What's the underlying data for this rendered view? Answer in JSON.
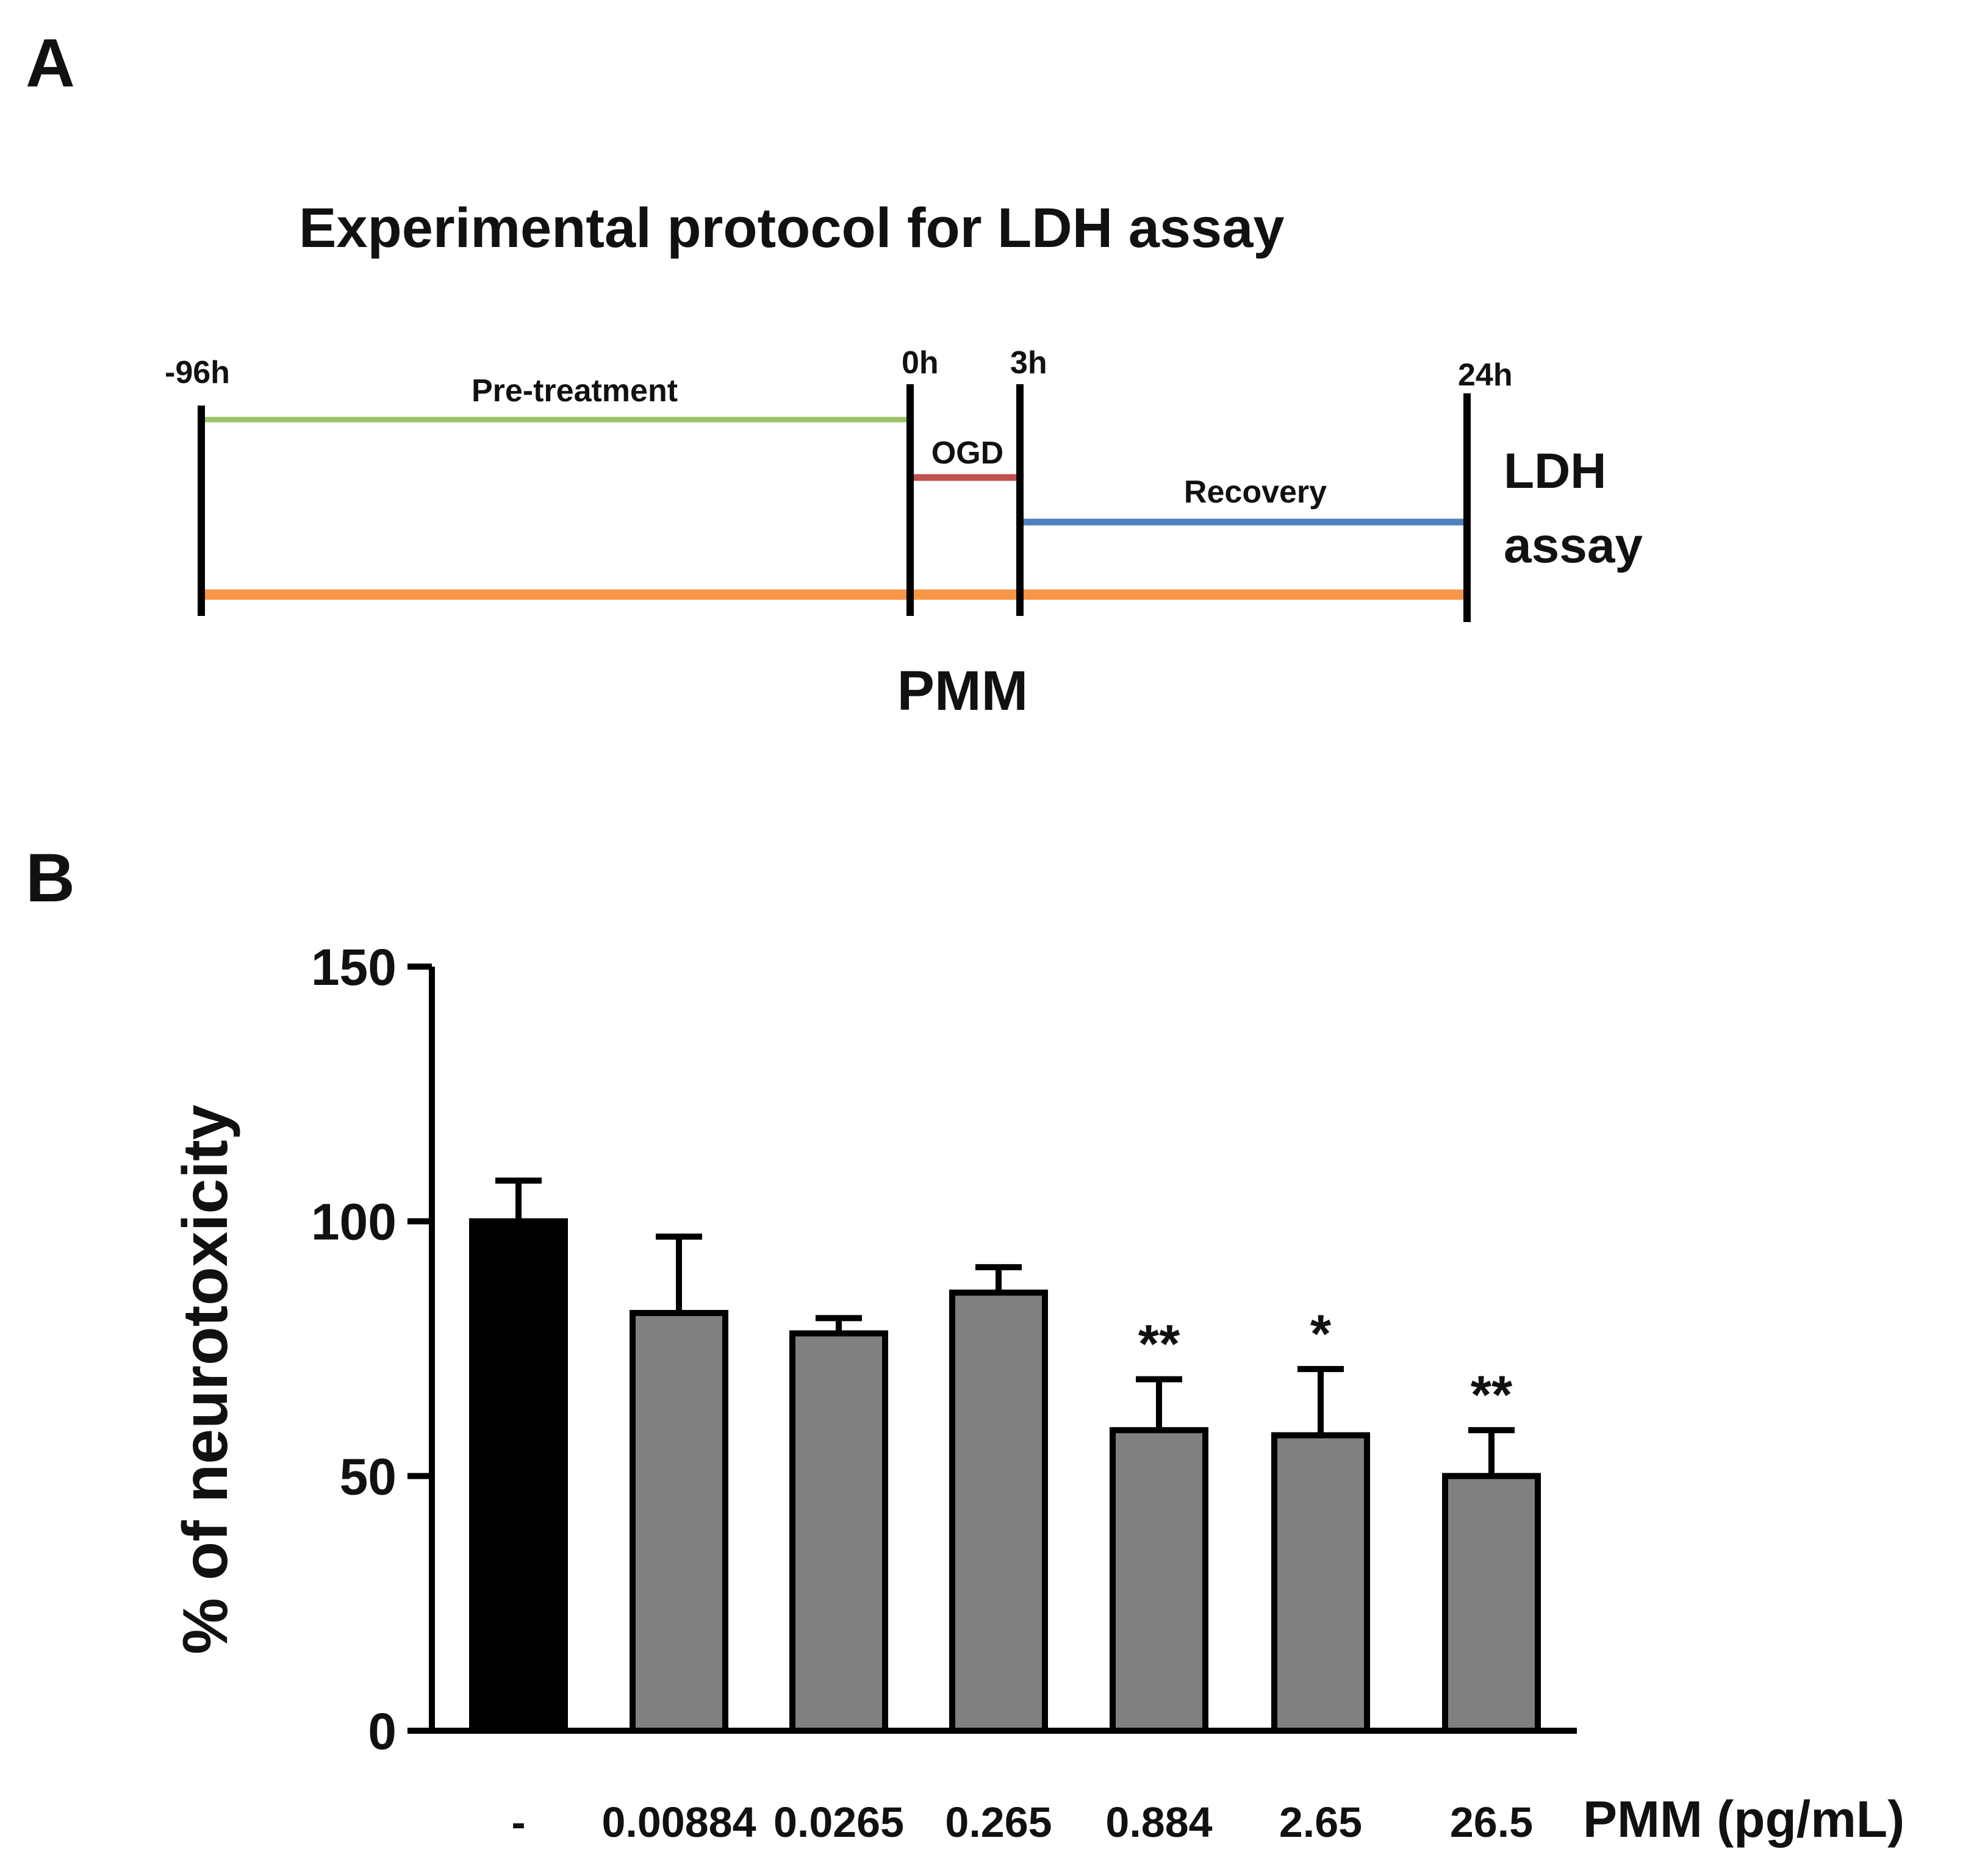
{
  "panels": {
    "a_label": "A",
    "b_label": "B"
  },
  "protocol": {
    "title": "Experimental protocol for LDH assay",
    "timepoints": [
      "-96h",
      "0h",
      "3h",
      "24h"
    ],
    "phases": {
      "pretreatment": "Pre-treatment",
      "ogd": "OGD",
      "recovery": "Recovery"
    },
    "assay_line1": "LDH",
    "assay_line2": "assay",
    "drug_label": "PMM",
    "colors": {
      "pretreatment": "#9dc46a",
      "ogd": "#c0504d",
      "recovery": "#4f81bd",
      "pmm": "#f79646",
      "marker": "#000000"
    }
  },
  "chart_data": {
    "type": "bar",
    "title": "",
    "xlabel": "PMM (pg/mL)",
    "ylabel": "% of neurotoxicity",
    "ylim": [
      0,
      150
    ],
    "yticks": [
      0,
      50,
      100,
      150
    ],
    "ytick_labels": [
      "0",
      "50",
      "100",
      "150"
    ],
    "categories": [
      "-",
      "0.00884",
      "0.0265",
      "0.265",
      "0.884",
      "2.65",
      "26.5"
    ],
    "values": [
      100,
      82,
      78,
      86,
      59,
      58,
      50
    ],
    "errors": [
      8,
      15,
      3,
      5,
      10,
      13,
      9
    ],
    "significance": [
      "",
      "",
      "",
      "",
      "**",
      "*",
      "**"
    ],
    "bar_colors": [
      "#000000",
      "#808080",
      "#808080",
      "#808080",
      "#808080",
      "#808080",
      "#808080"
    ],
    "grid": false,
    "legend": "none"
  }
}
